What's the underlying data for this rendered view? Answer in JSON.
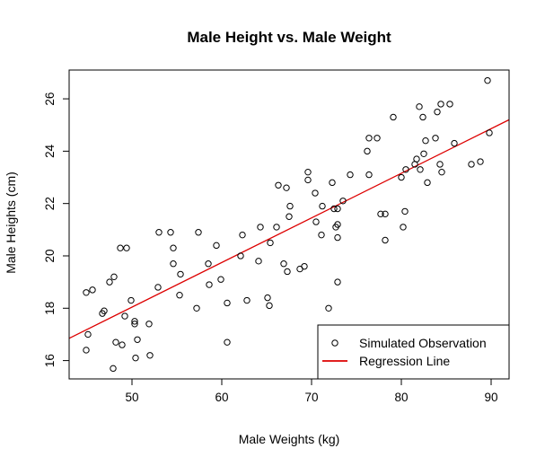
{
  "chart_data": {
    "type": "scatter",
    "title": "Male Height vs. Male Weight",
    "xlabel": "Male Weights (kg)",
    "ylabel": "Male Heights (cm)",
    "xlim": [
      43,
      92
    ],
    "ylim": [
      15.3,
      27.1
    ],
    "xticks": [
      50,
      60,
      70,
      80,
      90
    ],
    "yticks": [
      16,
      18,
      20,
      22,
      24,
      26
    ],
    "grid": false,
    "legend": {
      "placement": "bottom-right",
      "entries": [
        {
          "label": "Simulated Observation",
          "kind": "point"
        },
        {
          "label": "Regression Line",
          "kind": "line",
          "color": "#dd0000"
        }
      ]
    },
    "series": [
      {
        "name": "Simulated Observation",
        "kind": "points",
        "color": "#000000",
        "points": [
          [
            44.9,
            18.6
          ],
          [
            44.9,
            16.4
          ],
          [
            45.1,
            17.0
          ],
          [
            45.6,
            18.7
          ],
          [
            46.7,
            17.8
          ],
          [
            46.9,
            17.9
          ],
          [
            47.5,
            19.0
          ],
          [
            48.0,
            19.2
          ],
          [
            47.9,
            15.7
          ],
          [
            48.2,
            16.7
          ],
          [
            48.7,
            20.3
          ],
          [
            48.9,
            16.6
          ],
          [
            49.2,
            17.7
          ],
          [
            49.4,
            20.3
          ],
          [
            49.9,
            18.3
          ],
          [
            50.3,
            17.5
          ],
          [
            50.3,
            17.4
          ],
          [
            50.4,
            16.1
          ],
          [
            50.6,
            16.8
          ],
          [
            51.9,
            17.4
          ],
          [
            52.0,
            16.2
          ],
          [
            52.9,
            18.8
          ],
          [
            53.0,
            20.9
          ],
          [
            54.3,
            20.9
          ],
          [
            54.6,
            20.3
          ],
          [
            54.6,
            19.7
          ],
          [
            55.3,
            18.5
          ],
          [
            55.4,
            19.3
          ],
          [
            57.2,
            18.0
          ],
          [
            57.4,
            20.9
          ],
          [
            58.5,
            19.7
          ],
          [
            58.6,
            18.9
          ],
          [
            59.4,
            20.4
          ],
          [
            59.9,
            19.1
          ],
          [
            60.6,
            18.2
          ],
          [
            60.6,
            16.7
          ],
          [
            62.1,
            20.0
          ],
          [
            62.3,
            20.8
          ],
          [
            62.8,
            18.3
          ],
          [
            64.1,
            19.8
          ],
          [
            64.3,
            21.1
          ],
          [
            65.1,
            18.4
          ],
          [
            65.3,
            18.1
          ],
          [
            65.4,
            20.5
          ],
          [
            66.1,
            21.1
          ],
          [
            66.3,
            22.7
          ],
          [
            66.9,
            19.7
          ],
          [
            67.2,
            22.6
          ],
          [
            67.3,
            19.4
          ],
          [
            67.5,
            21.5
          ],
          [
            67.6,
            21.9
          ],
          [
            68.7,
            19.5
          ],
          [
            69.2,
            19.6
          ],
          [
            69.6,
            23.2
          ],
          [
            69.6,
            22.9
          ],
          [
            70.4,
            22.4
          ],
          [
            70.5,
            21.3
          ],
          [
            71.1,
            20.8
          ],
          [
            71.2,
            21.9
          ],
          [
            71.9,
            18.0
          ],
          [
            72.3,
            22.8
          ],
          [
            72.5,
            21.8
          ],
          [
            72.7,
            21.1
          ],
          [
            72.9,
            20.7
          ],
          [
            72.9,
            21.8
          ],
          [
            72.9,
            21.2
          ],
          [
            72.9,
            19.0
          ],
          [
            73.5,
            22.1
          ],
          [
            74.3,
            23.1
          ],
          [
            76.2,
            24.0
          ],
          [
            76.4,
            24.5
          ],
          [
            76.4,
            23.1
          ],
          [
            77.3,
            24.5
          ],
          [
            77.7,
            21.6
          ],
          [
            78.2,
            21.6
          ],
          [
            78.2,
            20.6
          ],
          [
            79.1,
            25.3
          ],
          [
            80.0,
            23.0
          ],
          [
            80.2,
            21.1
          ],
          [
            80.4,
            21.7
          ],
          [
            80.5,
            23.3
          ],
          [
            81.5,
            23.5
          ],
          [
            81.7,
            23.7
          ],
          [
            82.0,
            25.7
          ],
          [
            82.1,
            23.3
          ],
          [
            82.4,
            25.3
          ],
          [
            82.5,
            23.9
          ],
          [
            82.7,
            24.4
          ],
          [
            82.9,
            22.8
          ],
          [
            83.8,
            24.5
          ],
          [
            84.0,
            25.5
          ],
          [
            84.3,
            23.5
          ],
          [
            84.4,
            25.8
          ],
          [
            84.5,
            23.2
          ],
          [
            85.4,
            25.8
          ],
          [
            85.9,
            24.3
          ],
          [
            87.8,
            23.5
          ],
          [
            88.8,
            23.6
          ],
          [
            89.6,
            26.7
          ],
          [
            89.8,
            24.7
          ]
        ]
      },
      {
        "name": "Regression Line",
        "kind": "line",
        "color": "#dd0000",
        "points": [
          [
            43,
            16.85
          ],
          [
            92,
            25.2
          ]
        ]
      }
    ]
  }
}
